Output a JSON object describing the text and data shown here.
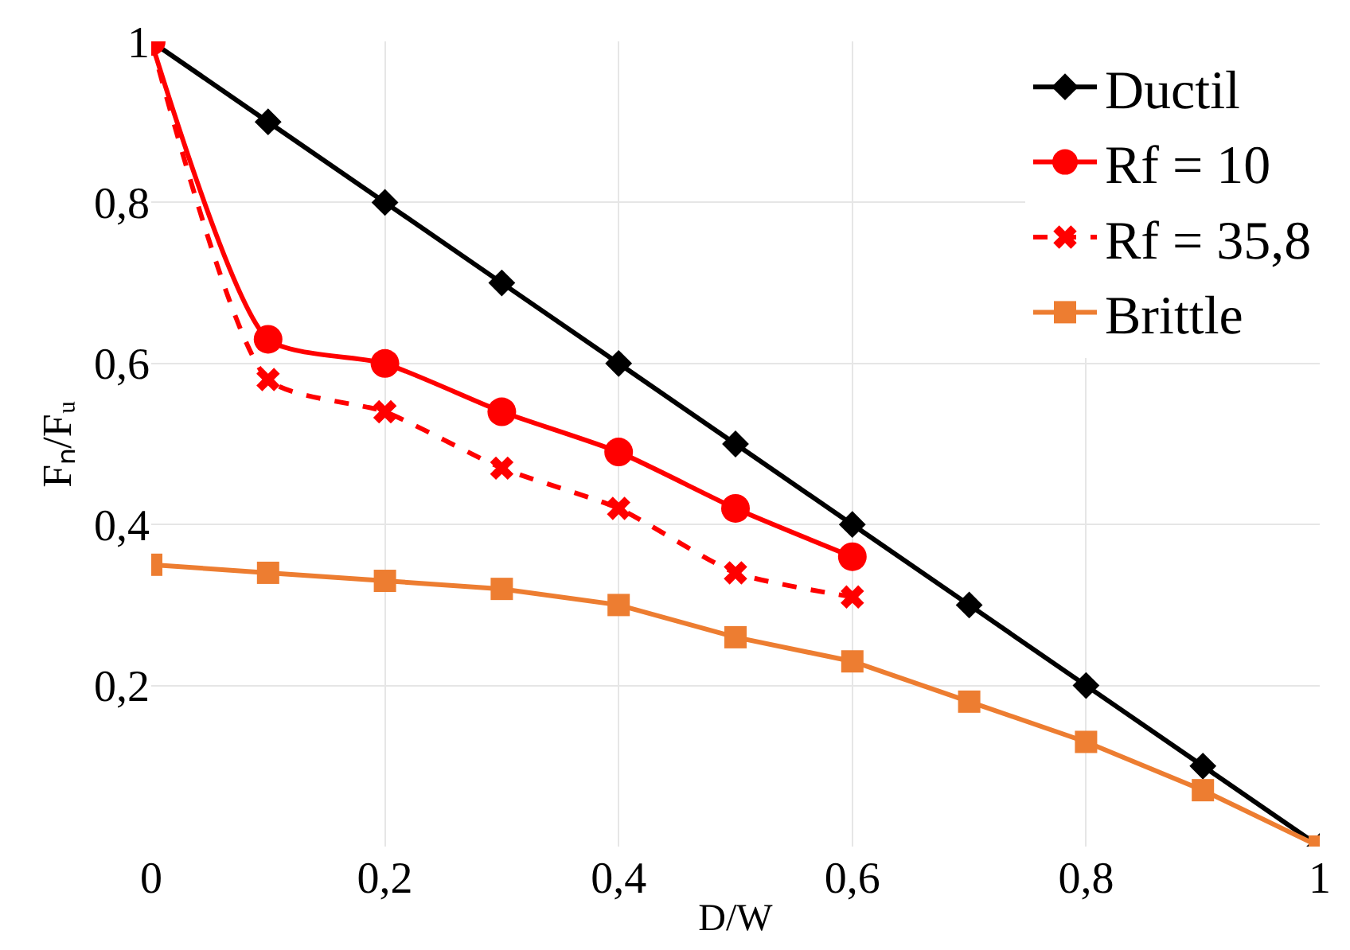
{
  "chart_data": {
    "type": "line",
    "xlabel": "D/W",
    "ylabel": "Fₙ/Fᵤ",
    "xlim": [
      0,
      1
    ],
    "ylim": [
      0,
      1
    ],
    "xticks": [
      0,
      {
        "value": 0.2,
        "label": "0,2"
      },
      {
        "value": 0.4,
        "label": "0,4"
      },
      {
        "value": 0.6,
        "label": "0,6"
      },
      {
        "value": 0.8,
        "label": "0,8"
      },
      1
    ],
    "yticks": [
      {
        "value": 0.2,
        "label": "0,2"
      },
      {
        "value": 0.4,
        "label": "0,4"
      },
      {
        "value": 0.6,
        "label": "0,6"
      },
      {
        "value": 0.8,
        "label": "0,8"
      },
      1
    ],
    "grid": true,
    "legend": "top right",
    "series": [
      {
        "name": "Ductil",
        "color": "#000000",
        "marker": "diamond",
        "line_style": "solid",
        "x": [
          0,
          0.1,
          0.2,
          0.3,
          0.4,
          0.5,
          0.6,
          0.7,
          0.8,
          0.9,
          1
        ],
        "values": [
          1,
          0.9,
          0.8,
          0.7,
          0.6,
          0.5,
          0.4,
          0.3,
          0.2,
          0.1,
          0
        ]
      },
      {
        "name": "Rf = 10",
        "color": "#ff0000",
        "marker": "circle",
        "line_style": "solid",
        "x": [
          0,
          0.1,
          0.2,
          0.3,
          0.4,
          0.5,
          0.6
        ],
        "values": [
          1,
          0.63,
          0.6,
          0.54,
          0.49,
          0.42,
          0.36
        ]
      },
      {
        "name": "Rf = 35,8",
        "color": "#ff0000",
        "marker": "cross",
        "line_style": "dashed",
        "x": [
          0,
          0.1,
          0.2,
          0.3,
          0.4,
          0.5,
          0.6
        ],
        "values": [
          1,
          0.58,
          0.54,
          0.47,
          0.42,
          0.34,
          0.31
        ]
      },
      {
        "name": "Brittle",
        "color": "#ed7d31",
        "marker": "square",
        "line_style": "solid",
        "x": [
          0,
          0.1,
          0.2,
          0.3,
          0.4,
          0.5,
          0.6,
          0.7,
          0.8,
          0.9,
          1
        ],
        "values": [
          0.35,
          0.34,
          0.33,
          0.32,
          0.3,
          0.26,
          0.23,
          0.18,
          0.13,
          0.07,
          0
        ]
      }
    ]
  }
}
